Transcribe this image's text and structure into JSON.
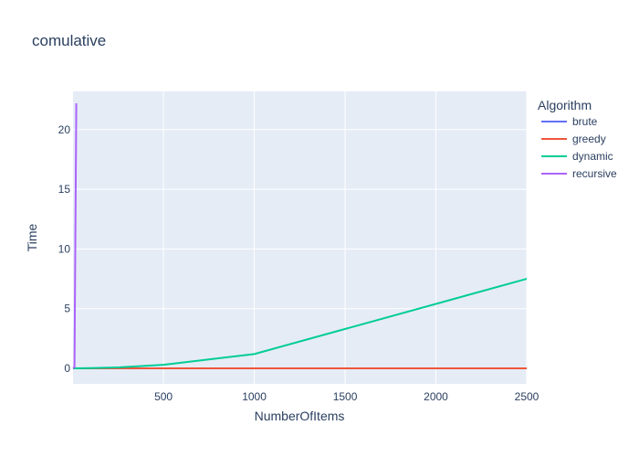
{
  "chart_data": {
    "type": "line",
    "title": "comulative",
    "xlabel": "NumberOfItems",
    "ylabel": "Time",
    "xlim": [
      2,
      2500
    ],
    "ylim": [
      -1.3,
      23.2
    ],
    "xticks": [
      500,
      1000,
      1500,
      2000,
      2500
    ],
    "yticks": [
      0,
      5,
      10,
      15,
      20
    ],
    "grid": true,
    "legend": {
      "title": "Algorithm",
      "placement": "top-right, outside plot"
    },
    "series": [
      {
        "name": "brute",
        "color": "#636efa",
        "x": [
          2,
          10,
          20
        ],
        "y": [
          0.0,
          0.0,
          0.02
        ]
      },
      {
        "name": "greedy",
        "color": "#ef553b",
        "x": [
          2,
          10,
          20,
          50,
          100,
          250,
          500,
          1000,
          2500
        ],
        "y": [
          0,
          0,
          0,
          0,
          0,
          0,
          0,
          0,
          0
        ]
      },
      {
        "name": "dynamic",
        "color": "#00cc96",
        "x": [
          2,
          10,
          20,
          50,
          100,
          250,
          500,
          1000,
          2500
        ],
        "y": [
          0,
          0,
          0,
          0.01,
          0.02,
          0.08,
          0.3,
          1.2,
          7.5
        ]
      },
      {
        "name": "recursive",
        "color": "#ab63fa",
        "x": [
          2,
          10,
          20
        ],
        "y": [
          0,
          0.1,
          22.2
        ]
      }
    ]
  }
}
